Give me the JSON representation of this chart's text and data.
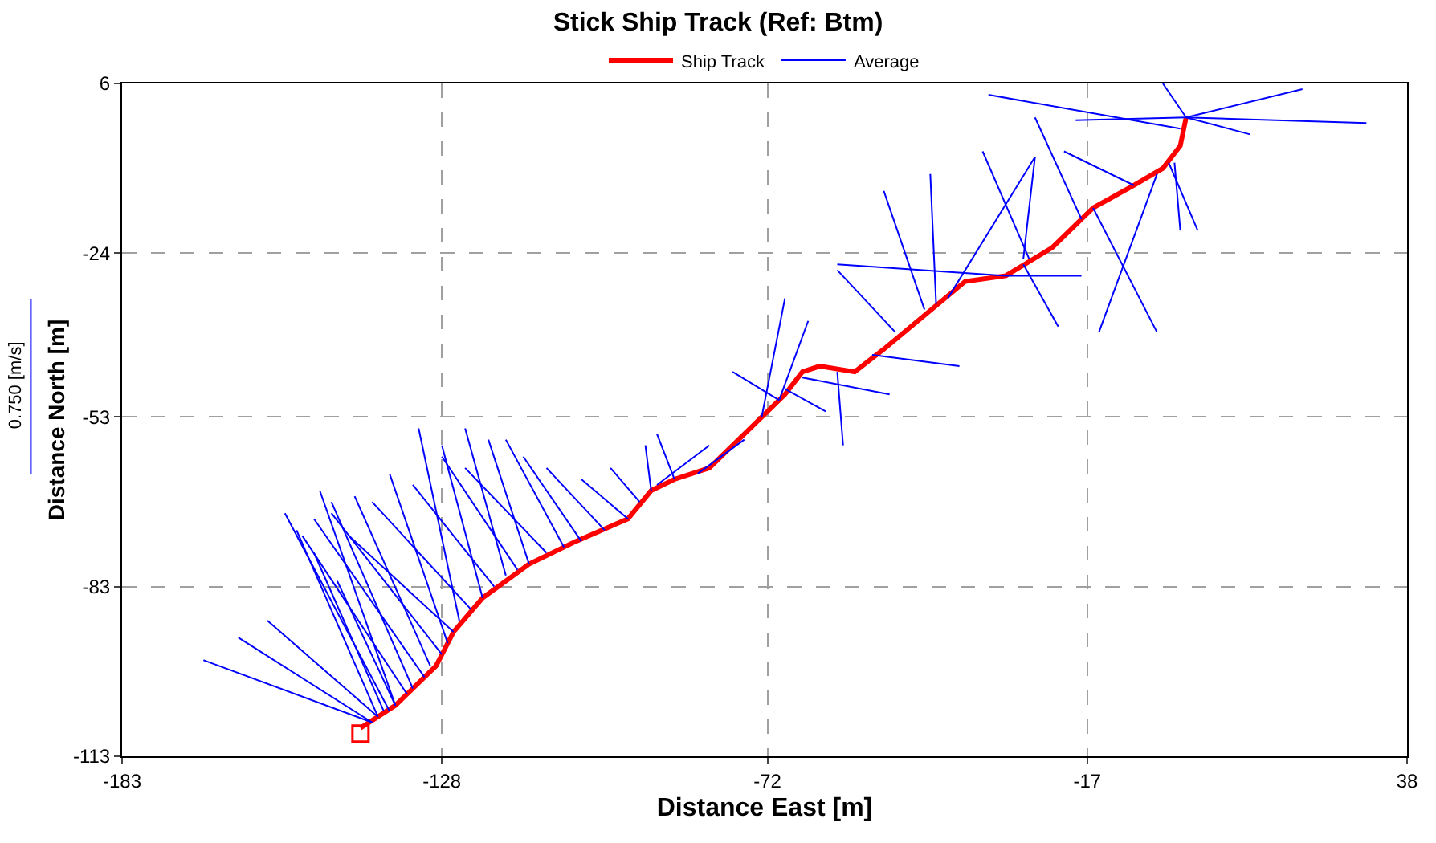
{
  "chart_data": {
    "type": "line",
    "title": "Stick Ship Track (Ref: Btm)",
    "xlabel": "Distance East [m]",
    "ylabel": "Distance North [m]",
    "xlim": [
      -183,
      38
    ],
    "xticks": [
      -183,
      -128,
      -72,
      -17,
      38
    ],
    "ylim": [
      -113,
      6
    ],
    "yticks": [
      6,
      -24,
      -53,
      -83,
      -113
    ],
    "grid": true,
    "legend": "top",
    "annotations": [
      "0.750 [m/s]"
    ],
    "series": [
      {
        "name": "Ship Track",
        "color": "#ff0000",
        "marker": "none",
        "line_style": "solid",
        "x": [
          -142,
          -136,
          -129,
          -126,
          -121,
          -113,
          -105,
          -96,
          -92,
          -88,
          -82,
          -75,
          -69,
          -66,
          -63,
          -57,
          -52,
          -45,
          -38,
          -31,
          -23,
          -16,
          -9,
          -4,
          -1,
          0
        ],
        "values": [
          -108,
          -104,
          -97,
          -91,
          -85,
          -79,
          -75,
          -71,
          -66,
          -64,
          -62,
          -55,
          -49,
          -45,
          -44,
          -45,
          -41,
          -35,
          -29,
          -28,
          -23,
          -16,
          -12,
          -9,
          -5,
          0
        ]
      },
      {
        "name": "Average",
        "color": "#0000ff",
        "marker": "none",
        "line_style": "solid",
        "x": [
          -140,
          -169,
          null,
          -140,
          -163,
          null,
          -139,
          -158,
          null,
          -139,
          -153,
          null,
          -138,
          -150,
          null,
          -137,
          -155,
          null,
          -136,
          -149,
          null,
          -136,
          -146,
          null,
          -134,
          -152,
          null,
          -133,
          -147,
          null,
          -131,
          -150,
          null,
          -130,
          -143,
          null,
          -128,
          -147,
          null,
          -127,
          -137,
          null,
          -126,
          -144,
          null,
          -125,
          -132,
          null,
          -123,
          -140,
          null,
          -121,
          -128,
          null,
          -119,
          -133,
          null,
          -117,
          -124,
          null,
          -115,
          -128,
          null,
          -113,
          -120,
          null,
          -110,
          -124,
          null,
          -107,
          -117,
          null,
          -104,
          -114,
          null,
          -100,
          -110,
          null,
          -96,
          -104,
          null,
          -94,
          -99,
          null,
          -92,
          -93,
          null,
          -91,
          -82,
          null,
          -88,
          -91,
          null,
          -84,
          -76,
          null,
          -73,
          -69,
          null,
          -70,
          -65,
          null,
          -70,
          -78,
          null,
          -69,
          -62,
          null,
          -66,
          -51,
          null,
          -60,
          -59,
          null,
          -54,
          -39,
          null,
          -50,
          -60,
          null,
          -45,
          -52,
          null,
          -43,
          -44,
          null,
          -41,
          -26,
          null,
          -31,
          -18,
          null,
          -31,
          -60,
          null,
          -28,
          -22,
          null,
          -27,
          -35,
          null,
          -28,
          -26,
          null,
          -18,
          -26,
          null,
          -16,
          -5,
          null,
          -5,
          -15,
          null,
          -9,
          -21,
          null,
          -3,
          2,
          null,
          -1,
          -34,
          null,
          0,
          31,
          null,
          0,
          20,
          null,
          0,
          -4,
          null,
          0,
          11,
          null,
          0,
          -19,
          null,
          -2,
          -1
        ],
        "values": [
          -107,
          -96,
          null,
          -107,
          -92,
          null,
          -106,
          -89,
          null,
          -106,
          -73,
          null,
          -105,
          -77,
          null,
          -105,
          -70,
          null,
          -104,
          -66,
          null,
          -104,
          -82,
          null,
          -102,
          -74,
          null,
          -101,
          -68,
          null,
          -99,
          -71,
          null,
          -97,
          -67,
          null,
          -95,
          -70,
          null,
          -93,
          -63,
          null,
          -91,
          -74,
          null,
          -89,
          -55,
          null,
          -87,
          -68,
          null,
          -85,
          -58,
          null,
          -83,
          -65,
          null,
          -81,
          -55,
          null,
          -80,
          -60,
          null,
          -79,
          -57,
          null,
          -77,
          -62,
          null,
          -76,
          -57,
          null,
          -75,
          -60,
          null,
          -73,
          -62,
          null,
          -71,
          -64,
          null,
          -68,
          -62,
          null,
          -66,
          -58,
          null,
          -65,
          -58,
          null,
          -64,
          -56,
          null,
          -63,
          -57,
          null,
          -53,
          -32,
          null,
          -50,
          -36,
          null,
          -50,
          -45,
          null,
          -48,
          -52,
          null,
          -46,
          -49,
          null,
          -45,
          -58,
          null,
          -42,
          -44,
          null,
          -38,
          -27,
          null,
          -34,
          -13,
          null,
          -33,
          -10,
          null,
          -32,
          -7,
          null,
          -28,
          -28,
          null,
          -28,
          -26,
          null,
          -26,
          -37,
          null,
          -25,
          -6,
          null,
          -25,
          -7,
          null,
          -18,
          0,
          null,
          -16,
          -38,
          null,
          -10,
          -38,
          null,
          -12,
          -6,
          null,
          -8,
          -20,
          null,
          -2,
          4,
          null,
          0,
          -1,
          null,
          0,
          5,
          null,
          0,
          6,
          null,
          0,
          -3,
          null,
          0,
          -0.5,
          null,
          -8,
          -20
        ]
      },
      {
        "color": "#ff0000",
        "type": "scatter",
        "marker": "square",
        "x": [
          -142
        ],
        "values": [
          -109
        ]
      }
    ]
  }
}
